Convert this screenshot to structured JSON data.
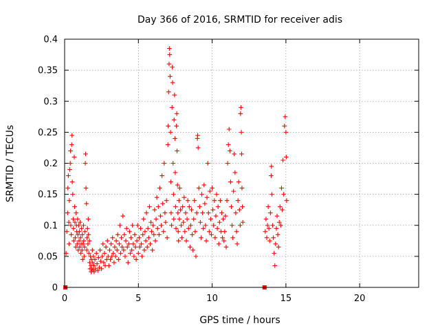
{
  "chart_data": {
    "type": "scatter",
    "title": "Day 366 of 2016, SRMTID for receiver adis",
    "xlabel": "GPS time / hours",
    "ylabel": "SRMTID / TECUs",
    "xlim": [
      0,
      24
    ],
    "ylim": [
      0,
      0.4
    ],
    "x_ticks": [
      0,
      5,
      10,
      15,
      20
    ],
    "y_ticks": [
      0,
      0.05,
      0.1,
      0.15,
      0.2,
      0.25,
      0.3,
      0.35,
      0.4
    ],
    "x_tick_labels": [
      "0",
      "5",
      "10",
      "15",
      "20"
    ],
    "y_tick_labels": [
      "0",
      "0.05",
      "0.1",
      "0.15",
      "0.2",
      "0.25",
      "0.3",
      "0.35",
      "0.4"
    ],
    "grid": true,
    "marker": "plus",
    "marker_color": "#ff0000",
    "zero_points": [
      [
        0.05,
        0
      ],
      [
        13.55,
        0
      ]
    ],
    "points": [
      [
        0.1,
        0.055
      ],
      [
        0.15,
        0.09
      ],
      [
        0.2,
        0.12
      ],
      [
        0.22,
        0.16
      ],
      [
        0.25,
        0.18
      ],
      [
        0.28,
        0.105
      ],
      [
        0.3,
        0.07
      ],
      [
        0.32,
        0.14
      ],
      [
        0.35,
        0.19
      ],
      [
        0.38,
        0.2
      ],
      [
        0.4,
        0.22
      ],
      [
        0.42,
        0.1
      ],
      [
        0.45,
        0.085
      ],
      [
        0.48,
        0.23
      ],
      [
        0.5,
        0.245
      ],
      [
        0.52,
        0.17
      ],
      [
        0.55,
        0.15
      ],
      [
        0.58,
        0.11
      ],
      [
        0.6,
        0.095
      ],
      [
        0.62,
        0.075
      ],
      [
        0.65,
        0.21
      ],
      [
        0.68,
        0.13
      ],
      [
        0.7,
        0.105
      ],
      [
        0.72,
        0.08
      ],
      [
        0.75,
        0.065
      ],
      [
        0.78,
        0.12
      ],
      [
        0.8,
        0.1
      ],
      [
        0.82,
        0.09
      ],
      [
        0.85,
        0.07
      ],
      [
        0.88,
        0.11
      ],
      [
        0.9,
        0.085
      ],
      [
        0.92,
        0.06
      ],
      [
        0.95,
        0.1
      ],
      [
        0.98,
        0.075
      ],
      [
        1.0,
        0.09
      ],
      [
        1.02,
        0.065
      ],
      [
        1.05,
        0.105
      ],
      [
        1.08,
        0.08
      ],
      [
        1.1,
        0.055
      ],
      [
        1.12,
        0.07
      ],
      [
        1.15,
        0.095
      ],
      [
        1.18,
        0.06
      ],
      [
        1.2,
        0.085
      ],
      [
        1.22,
        0.045
      ],
      [
        1.25,
        0.07
      ],
      [
        1.28,
        0.1
      ],
      [
        1.3,
        0.075
      ],
      [
        1.32,
        0.05
      ],
      [
        1.35,
        0.065
      ],
      [
        1.38,
        0.09
      ],
      [
        1.4,
        0.2
      ],
      [
        1.42,
        0.215
      ],
      [
        1.45,
        0.16
      ],
      [
        1.48,
        0.135
      ],
      [
        1.5,
        0.06
      ],
      [
        1.52,
        0.08
      ],
      [
        1.55,
        0.095
      ],
      [
        1.58,
        0.07
      ],
      [
        1.6,
        0.11
      ],
      [
        1.62,
        0.085
      ],
      [
        1.65,
        0.055
      ],
      [
        1.68,
        0.075
      ],
      [
        1.7,
        0.04
      ],
      [
        1.72,
        0.03
      ],
      [
        1.75,
        0.05
      ],
      [
        1.78,
        0.035
      ],
      [
        1.8,
        0.025
      ],
      [
        1.82,
        0.045
      ],
      [
        1.85,
        0.03
      ],
      [
        1.88,
        0.06
      ],
      [
        1.9,
        0.04
      ],
      [
        1.92,
        0.028
      ],
      [
        1.95,
        0.05
      ],
      [
        1.98,
        0.035
      ],
      [
        2.0,
        0.025
      ],
      [
        2.05,
        0.045
      ],
      [
        2.1,
        0.03
      ],
      [
        2.15,
        0.055
      ],
      [
        2.2,
        0.038
      ],
      [
        2.25,
        0.027
      ],
      [
        2.3,
        0.048
      ],
      [
        2.35,
        0.032
      ],
      [
        2.4,
        0.06
      ],
      [
        2.45,
        0.042
      ],
      [
        2.5,
        0.03
      ],
      [
        2.55,
        0.05
      ],
      [
        2.6,
        0.07
      ],
      [
        2.65,
        0.04
      ],
      [
        2.7,
        0.055
      ],
      [
        2.75,
        0.035
      ],
      [
        2.8,
        0.065
      ],
      [
        2.85,
        0.045
      ],
      [
        2.9,
        0.075
      ],
      [
        2.95,
        0.05
      ],
      [
        3.0,
        0.035
      ],
      [
        3.05,
        0.06
      ],
      [
        3.1,
        0.045
      ],
      [
        3.15,
        0.07
      ],
      [
        3.2,
        0.05
      ],
      [
        3.25,
        0.08
      ],
      [
        3.3,
        0.055
      ],
      [
        3.35,
        0.04
      ],
      [
        3.4,
        0.065
      ],
      [
        3.45,
        0.05
      ],
      [
        3.5,
        0.075
      ],
      [
        3.55,
        0.06
      ],
      [
        3.6,
        0.085
      ],
      [
        3.65,
        0.045
      ],
      [
        3.7,
        0.07
      ],
      [
        3.75,
        0.1
      ],
      [
        3.8,
        0.055
      ],
      [
        3.85,
        0.08
      ],
      [
        3.9,
        0.065
      ],
      [
        3.95,
        0.115
      ],
      [
        4.0,
        0.06
      ],
      [
        4.05,
        0.085
      ],
      [
        4.1,
        0.05
      ],
      [
        4.15,
        0.075
      ],
      [
        4.2,
        0.095
      ],
      [
        4.25,
        0.065
      ],
      [
        4.3,
        0.04
      ],
      [
        4.35,
        0.07
      ],
      [
        4.4,
        0.09
      ],
      [
        4.45,
        0.055
      ],
      [
        4.5,
        0.08
      ],
      [
        4.55,
        0.06
      ],
      [
        4.6,
        0.1
      ],
      [
        4.65,
        0.07
      ],
      [
        4.7,
        0.05
      ],
      [
        4.75,
        0.085
      ],
      [
        4.8,
        0.065
      ],
      [
        4.85,
        0.045
      ],
      [
        4.9,
        0.075
      ],
      [
        4.95,
        0.1
      ],
      [
        5.0,
        0.055
      ],
      [
        5.05,
        0.08
      ],
      [
        5.1,
        0.065
      ],
      [
        5.15,
        0.095
      ],
      [
        5.2,
        0.07
      ],
      [
        5.25,
        0.05
      ],
      [
        5.3,
        0.085
      ],
      [
        5.35,
        0.11
      ],
      [
        5.4,
        0.06
      ],
      [
        5.45,
        0.09
      ],
      [
        5.5,
        0.075
      ],
      [
        5.55,
        0.12
      ],
      [
        5.6,
        0.065
      ],
      [
        5.65,
        0.095
      ],
      [
        5.7,
        0.08
      ],
      [
        5.75,
        0.13
      ],
      [
        5.8,
        0.07
      ],
      [
        5.85,
        0.105
      ],
      [
        5.9,
        0.09
      ],
      [
        5.95,
        0.06
      ],
      [
        6.0,
        0.1
      ],
      [
        6.05,
        0.085
      ],
      [
        6.1,
        0.125
      ],
      [
        6.15,
        0.075
      ],
      [
        6.2,
        0.11
      ],
      [
        6.25,
        0.145
      ],
      [
        6.3,
        0.095
      ],
      [
        6.35,
        0.13
      ],
      [
        6.4,
        0.085
      ],
      [
        6.45,
        0.16
      ],
      [
        6.5,
        0.115
      ],
      [
        6.55,
        0.1
      ],
      [
        6.6,
        0.18
      ],
      [
        6.65,
        0.135
      ],
      [
        6.7,
        0.09
      ],
      [
        6.75,
        0.2
      ],
      [
        6.8,
        0.12
      ],
      [
        6.85,
        0.105
      ],
      [
        6.9,
        0.14
      ],
      [
        6.95,
        0.08
      ],
      [
        7.0,
        0.23
      ],
      [
        7.02,
        0.26
      ],
      [
        7.05,
        0.315
      ],
      [
        7.08,
        0.36
      ],
      [
        7.1,
        0.385
      ],
      [
        7.12,
        0.375
      ],
      [
        7.15,
        0.34
      ],
      [
        7.18,
        0.25
      ],
      [
        7.2,
        0.17
      ],
      [
        7.22,
        0.12
      ],
      [
        7.25,
        0.1
      ],
      [
        7.28,
        0.29
      ],
      [
        7.3,
        0.355
      ],
      [
        7.32,
        0.33
      ],
      [
        7.35,
        0.2
      ],
      [
        7.38,
        0.15
      ],
      [
        7.4,
        0.11
      ],
      [
        7.42,
        0.27
      ],
      [
        7.45,
        0.31
      ],
      [
        7.48,
        0.24
      ],
      [
        7.5,
        0.185
      ],
      [
        7.52,
        0.13
      ],
      [
        7.55,
        0.095
      ],
      [
        7.58,
        0.26
      ],
      [
        7.6,
        0.28
      ],
      [
        7.62,
        0.22
      ],
      [
        7.65,
        0.165
      ],
      [
        7.68,
        0.12
      ],
      [
        7.7,
        0.09
      ],
      [
        7.72,
        0.075
      ],
      [
        7.75,
        0.14
      ],
      [
        7.78,
        0.11
      ],
      [
        7.8,
        0.16
      ],
      [
        7.85,
        0.125
      ],
      [
        7.9,
        0.1
      ],
      [
        7.95,
        0.08
      ],
      [
        8.0,
        0.13
      ],
      [
        8.05,
        0.105
      ],
      [
        8.1,
        0.145
      ],
      [
        8.15,
        0.09
      ],
      [
        8.2,
        0.12
      ],
      [
        8.25,
        0.075
      ],
      [
        8.3,
        0.11
      ],
      [
        8.35,
        0.14
      ],
      [
        8.4,
        0.095
      ],
      [
        8.45,
        0.13
      ],
      [
        8.5,
        0.065
      ],
      [
        8.55,
        0.1
      ],
      [
        8.6,
        0.125
      ],
      [
        8.65,
        0.085
      ],
      [
        8.7,
        0.06
      ],
      [
        8.75,
        0.11
      ],
      [
        8.8,
        0.14
      ],
      [
        8.85,
        0.09
      ],
      [
        8.9,
        0.05
      ],
      [
        8.95,
        0.12
      ],
      [
        9.0,
        0.24
      ],
      [
        9.02,
        0.245
      ],
      [
        9.05,
        0.225
      ],
      [
        9.1,
        0.16
      ],
      [
        9.15,
        0.13
      ],
      [
        9.2,
        0.105
      ],
      [
        9.25,
        0.08
      ],
      [
        9.3,
        0.15
      ],
      [
        9.35,
        0.12
      ],
      [
        9.4,
        0.095
      ],
      [
        9.45,
        0.165
      ],
      [
        9.5,
        0.135
      ],
      [
        9.55,
        0.1
      ],
      [
        9.6,
        0.075
      ],
      [
        9.65,
        0.145
      ],
      [
        9.7,
        0.2
      ],
      [
        9.75,
        0.12
      ],
      [
        9.8,
        0.09
      ],
      [
        9.85,
        0.155
      ],
      [
        9.9,
        0.11
      ],
      [
        9.95,
        0.085
      ],
      [
        10.0,
        0.16
      ],
      [
        10.05,
        0.125
      ],
      [
        10.1,
        0.1
      ],
      [
        10.15,
        0.14
      ],
      [
        10.2,
        0.08
      ],
      [
        10.25,
        0.115
      ],
      [
        10.3,
        0.15
      ],
      [
        10.35,
        0.095
      ],
      [
        10.4,
        0.13
      ],
      [
        10.45,
        0.07
      ],
      [
        10.5,
        0.105
      ],
      [
        10.55,
        0.14
      ],
      [
        10.6,
        0.09
      ],
      [
        10.65,
        0.12
      ],
      [
        10.7,
        0.08
      ],
      [
        10.75,
        0.11
      ],
      [
        10.8,
        0.075
      ],
      [
        10.85,
        0.09
      ],
      [
        10.9,
        0.115
      ],
      [
        10.95,
        0.065
      ],
      [
        11.0,
        0.14
      ],
      [
        11.05,
        0.2
      ],
      [
        11.1,
        0.23
      ],
      [
        11.15,
        0.255
      ],
      [
        11.2,
        0.22
      ],
      [
        11.25,
        0.17
      ],
      [
        11.3,
        0.13
      ],
      [
        11.35,
        0.1
      ],
      [
        11.4,
        0.08
      ],
      [
        11.45,
        0.155
      ],
      [
        11.5,
        0.215
      ],
      [
        11.55,
        0.185
      ],
      [
        11.6,
        0.12
      ],
      [
        11.65,
        0.09
      ],
      [
        11.7,
        0.07
      ],
      [
        11.75,
        0.14
      ],
      [
        11.8,
        0.17
      ],
      [
        11.85,
        0.125
      ],
      [
        11.9,
        0.1
      ],
      [
        11.92,
        0.28
      ],
      [
        11.95,
        0.29
      ],
      [
        11.98,
        0.25
      ],
      [
        12.0,
        0.215
      ],
      [
        12.02,
        0.16
      ],
      [
        12.05,
        0.13
      ],
      [
        12.08,
        0.105
      ],
      [
        13.6,
        0.09
      ],
      [
        13.65,
        0.11
      ],
      [
        13.7,
        0.08
      ],
      [
        13.75,
        0.1
      ],
      [
        13.8,
        0.13
      ],
      [
        13.85,
        0.095
      ],
      [
        13.9,
        0.075
      ],
      [
        13.95,
        0.12
      ],
      [
        14.0,
        0.18
      ],
      [
        14.02,
        0.195
      ],
      [
        14.05,
        0.15
      ],
      [
        14.1,
        0.1
      ],
      [
        14.15,
        0.08
      ],
      [
        14.2,
        0.055
      ],
      [
        14.25,
        0.035
      ],
      [
        14.3,
        0.07
      ],
      [
        14.35,
        0.095
      ],
      [
        14.4,
        0.115
      ],
      [
        14.45,
        0.085
      ],
      [
        14.5,
        0.065
      ],
      [
        14.55,
        0.105
      ],
      [
        14.6,
        0.13
      ],
      [
        14.65,
        0.1
      ],
      [
        14.7,
        0.16
      ],
      [
        14.75,
        0.125
      ],
      [
        14.8,
        0.205
      ],
      [
        14.85,
        0.15
      ],
      [
        14.9,
        0.26
      ],
      [
        14.95,
        0.275
      ],
      [
        15.0,
        0.25
      ],
      [
        15.02,
        0.21
      ],
      [
        15.05,
        0.14
      ]
    ]
  }
}
